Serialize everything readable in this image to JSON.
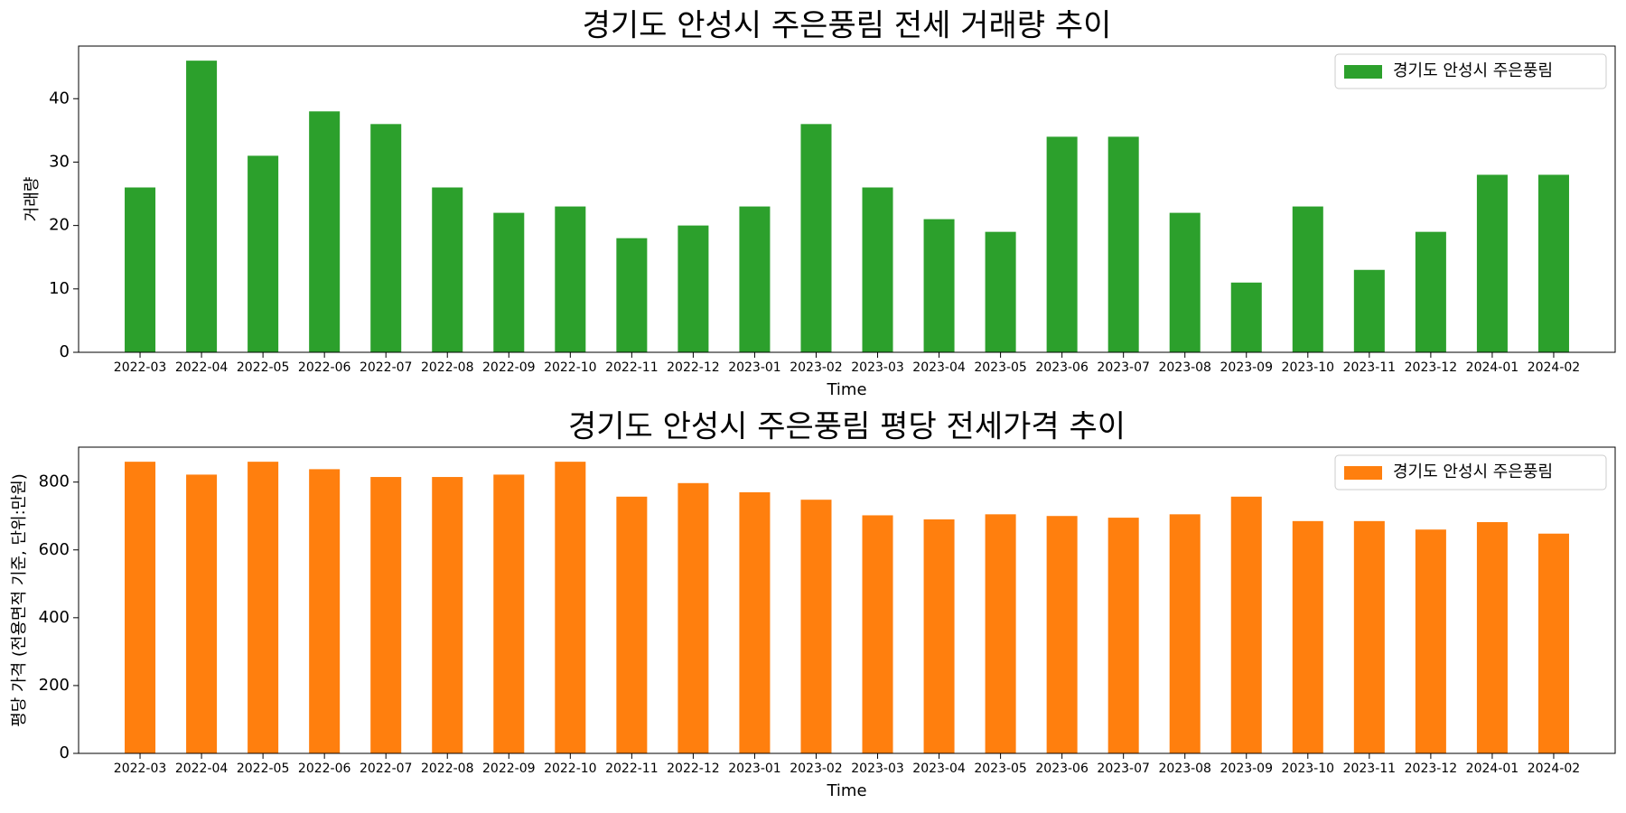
{
  "chart_data": [
    {
      "type": "bar",
      "title": "경기도 안성시 주은풍림 전세 거래량 추이",
      "xlabel": "Time",
      "ylabel": "거래량",
      "categories": [
        "2022-03",
        "2022-04",
        "2022-05",
        "2022-06",
        "2022-07",
        "2022-08",
        "2022-09",
        "2022-10",
        "2022-11",
        "2022-12",
        "2023-01",
        "2023-02",
        "2023-03",
        "2023-04",
        "2023-05",
        "2023-06",
        "2023-07",
        "2023-08",
        "2023-09",
        "2023-10",
        "2023-11",
        "2023-12",
        "2024-01",
        "2024-02"
      ],
      "series": [
        {
          "name": "경기도 안성시 주은풍림",
          "color": "#2ca02c",
          "values": [
            26,
            46,
            31,
            38,
            36,
            26,
            22,
            23,
            18,
            20,
            23,
            36,
            26,
            21,
            19,
            34,
            34,
            22,
            11,
            23,
            13,
            19,
            28,
            28
          ]
        }
      ],
      "ylim": [
        0,
        48.3
      ],
      "yticks": [
        0,
        10,
        20,
        30,
        40
      ],
      "grid": false,
      "legend": "top-right"
    },
    {
      "type": "bar",
      "title": "경기도 안성시 주은풍림 평당 전세가격 추이",
      "xlabel": "Time",
      "ylabel": "평당 가격 (전용면적 기준, 단위:만원)",
      "categories": [
        "2022-03",
        "2022-04",
        "2022-05",
        "2022-06",
        "2022-07",
        "2022-08",
        "2022-09",
        "2022-10",
        "2022-11",
        "2022-12",
        "2023-01",
        "2023-02",
        "2023-03",
        "2023-04",
        "2023-05",
        "2023-06",
        "2023-07",
        "2023-08",
        "2023-09",
        "2023-10",
        "2023-11",
        "2023-12",
        "2024-01",
        "2024-02"
      ],
      "series": [
        {
          "name": "경기도 안성시 주은풍림",
          "color": "#ff7f0e",
          "values": [
            860,
            822,
            860,
            838,
            815,
            815,
            822,
            860,
            757,
            797,
            770,
            748,
            702,
            690,
            705,
            700,
            695,
            705,
            757,
            685,
            685,
            660,
            682,
            648
          ]
        }
      ],
      "ylim": [
        0,
        903
      ],
      "yticks": [
        0,
        200,
        400,
        600,
        800
      ],
      "grid": false,
      "legend": "top-right"
    }
  ]
}
